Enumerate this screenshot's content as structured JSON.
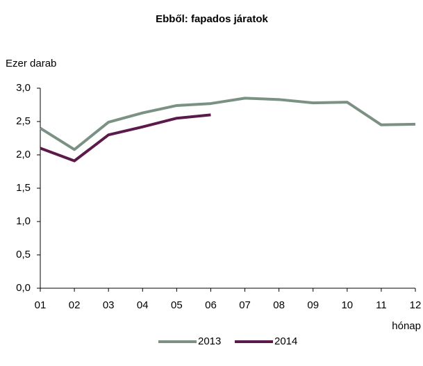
{
  "chart_data": {
    "type": "line",
    "title": "Ebből: fapados járatok",
    "y_label": "Ezer darab",
    "x_label": "hónap",
    "categories": [
      "01",
      "02",
      "03",
      "04",
      "05",
      "06",
      "07",
      "08",
      "09",
      "10",
      "11",
      "12"
    ],
    "series": [
      {
        "name": "2013",
        "color": "#7a9183",
        "values": [
          2.4,
          2.08,
          2.49,
          2.63,
          2.74,
          2.77,
          2.85,
          2.83,
          2.78,
          2.79,
          2.45,
          2.46
        ]
      },
      {
        "name": "2014",
        "color": "#5c1a4b",
        "values": [
          2.1,
          1.91,
          2.3,
          2.42,
          2.55,
          2.6,
          null,
          null,
          null,
          null,
          null,
          null
        ]
      }
    ],
    "ylim": [
      0,
      3
    ],
    "yticks": [
      {
        "value": 0,
        "label": "0,0"
      },
      {
        "value": 0.5,
        "label": "0,5"
      },
      {
        "value": 1,
        "label": "1,0"
      },
      {
        "value": 1.5,
        "label": "1,5"
      },
      {
        "value": 2,
        "label": "2,0"
      },
      {
        "value": 2.5,
        "label": "2,5"
      },
      {
        "value": 3,
        "label": "3,0"
      }
    ],
    "grid": false,
    "legend": "bottom"
  }
}
